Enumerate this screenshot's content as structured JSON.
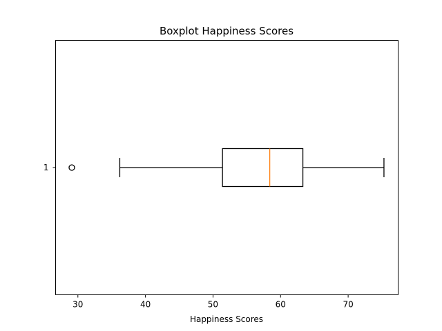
{
  "chart_data": {
    "type": "boxplot",
    "title": "Boxplot Happiness Scores",
    "xlabel": "Happiness Scores",
    "ylabel": "",
    "orientation": "horizontal",
    "xlim": [
      26.7,
      77.4
    ],
    "x_ticks": [
      30,
      40,
      50,
      60,
      70
    ],
    "categories": [
      "1"
    ],
    "boxes": [
      {
        "category": "1",
        "whisker_low": 36.2,
        "q1": 51.4,
        "median": 58.4,
        "q3": 63.3,
        "whisker_high": 75.3,
        "outliers": [
          29.1
        ]
      }
    ],
    "grid": false,
    "colors": {
      "box": "#000000",
      "median": "#ff7f0e",
      "outlier": "#000000"
    }
  }
}
